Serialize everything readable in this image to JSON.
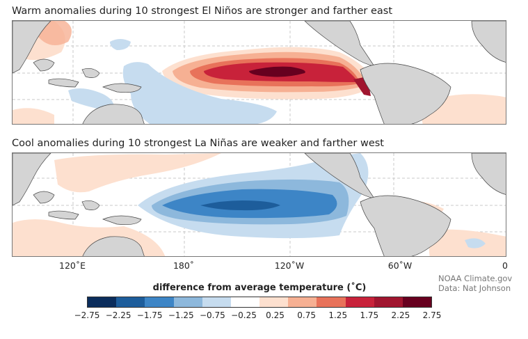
{
  "panels": [
    {
      "title": "Warm anomalies during 10 strongest El Niños are stronger and farther east"
    },
    {
      "title": "Cool anomalies during 10 strongest La Niñas are weaker and farther west"
    }
  ],
  "longitude_labels": [
    "120˚E",
    "180˚",
    "120˚W",
    "60˚W",
    "0"
  ],
  "credits": {
    "line1": "NOAA Climate.gov",
    "line2": "Data: Nat Johnson"
  },
  "legend": {
    "title": "difference from average temperature (˚C)",
    "ticks": [
      "−2.75",
      "−2.25",
      "−1.75",
      "−1.25",
      "−0.75",
      "−0.25",
      "0.25",
      "0.75",
      "1.25",
      "1.75",
      "2.25",
      "2.75"
    ],
    "colors": [
      "#0b2d5c",
      "#1d5d9b",
      "#3d85c6",
      "#8db8dc",
      "#c6dcef",
      "#ffffff",
      "#fde0cf",
      "#f6b093",
      "#e8725a",
      "#c8223a",
      "#a0152f",
      "#67001f"
    ]
  },
  "colors": {
    "land": "#d4d4d4",
    "coast": "#444444",
    "grid": "#c8c8c8"
  }
}
